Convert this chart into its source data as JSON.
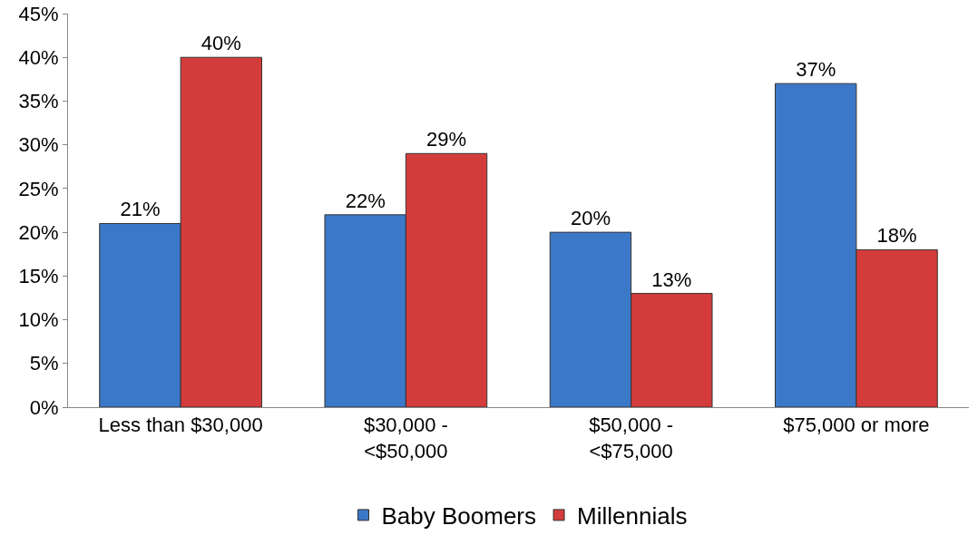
{
  "chart_data": {
    "type": "bar",
    "categories": [
      "Less than $30,000",
      "$30,000 -\n<$50,000",
      "$50,000 -\n<$75,000",
      "$75,000 or more"
    ],
    "series": [
      {
        "name": "Baby Boomers",
        "color": "#3c78c8",
        "values": [
          21,
          22,
          20,
          37
        ],
        "value_labels": [
          "21%",
          "22%",
          "20%",
          "37%"
        ]
      },
      {
        "name": "Millennials",
        "color": "#d43c3c",
        "values": [
          40,
          29,
          13,
          18
        ],
        "value_labels": [
          "40%",
          "29%",
          "13%",
          "18%"
        ]
      }
    ],
    "ylim": [
      0,
      45
    ],
    "yticks": [
      {
        "value": 0,
        "label": "0%"
      },
      {
        "value": 5,
        "label": "5%"
      },
      {
        "value": 10,
        "label": "10%"
      },
      {
        "value": 15,
        "label": "15%"
      },
      {
        "value": 20,
        "label": "20%"
      },
      {
        "value": 25,
        "label": "25%"
      },
      {
        "value": 30,
        "label": "30%"
      },
      {
        "value": 35,
        "label": "35%"
      },
      {
        "value": 40,
        "label": "40%"
      },
      {
        "value": 45,
        "label": "45%"
      }
    ],
    "grid": false,
    "legend": "bottom"
  }
}
